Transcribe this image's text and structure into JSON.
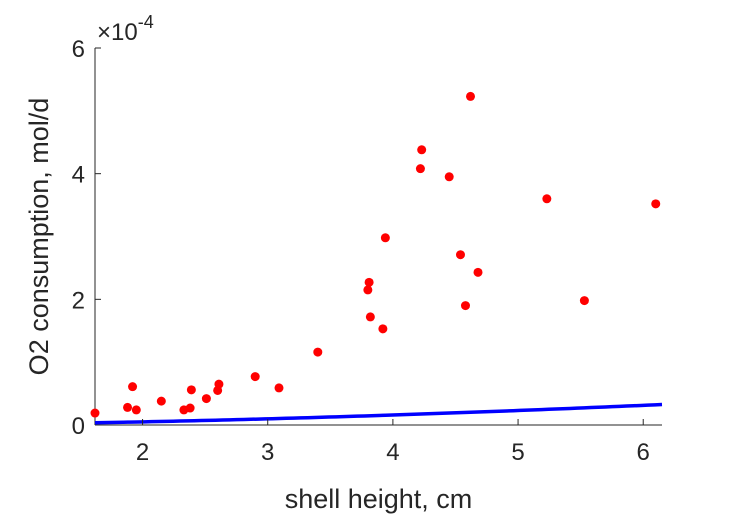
{
  "chart_data": {
    "type": "scatter",
    "xlabel": "shell height, cm",
    "ylabel": "O2 consumption, mol/d",
    "y_exponent_label": "×10",
    "y_exponent": "-4",
    "xlim": [
      1.62,
      6.15
    ],
    "ylim": [
      0,
      6
    ],
    "xticks": [
      "2",
      "3",
      "4",
      "5",
      "6"
    ],
    "yticks": [
      "0",
      "2",
      "4",
      "6"
    ],
    "grid": false,
    "legend": "none",
    "scatter_color": "#ff0000",
    "line_color": "#0000ff",
    "series": [
      {
        "type": "scatter",
        "points": [
          [
            1.62,
            0.19
          ],
          [
            1.88,
            0.28
          ],
          [
            1.92,
            0.61
          ],
          [
            1.95,
            0.24
          ],
          [
            2.15,
            0.38
          ],
          [
            2.33,
            0.24
          ],
          [
            2.38,
            0.27
          ],
          [
            2.39,
            0.56
          ],
          [
            2.51,
            0.42
          ],
          [
            2.6,
            0.55
          ],
          [
            2.61,
            0.65
          ],
          [
            2.9,
            0.77
          ],
          [
            3.09,
            0.59
          ],
          [
            3.4,
            1.16
          ],
          [
            3.8,
            2.15
          ],
          [
            3.81,
            2.27
          ],
          [
            3.82,
            1.72
          ],
          [
            3.92,
            1.53
          ],
          [
            3.94,
            2.98
          ],
          [
            4.22,
            4.08
          ],
          [
            4.23,
            4.38
          ],
          [
            4.45,
            3.95
          ],
          [
            4.54,
            2.71
          ],
          [
            4.58,
            1.9
          ],
          [
            4.62,
            5.23
          ],
          [
            4.68,
            2.43
          ],
          [
            5.23,
            3.6
          ],
          [
            5.53,
            1.98
          ],
          [
            6.1,
            3.52
          ]
        ]
      },
      {
        "type": "line",
        "curve": {
          "form": "power",
          "a": 0.0157,
          "b": 1.67
        }
      }
    ]
  }
}
